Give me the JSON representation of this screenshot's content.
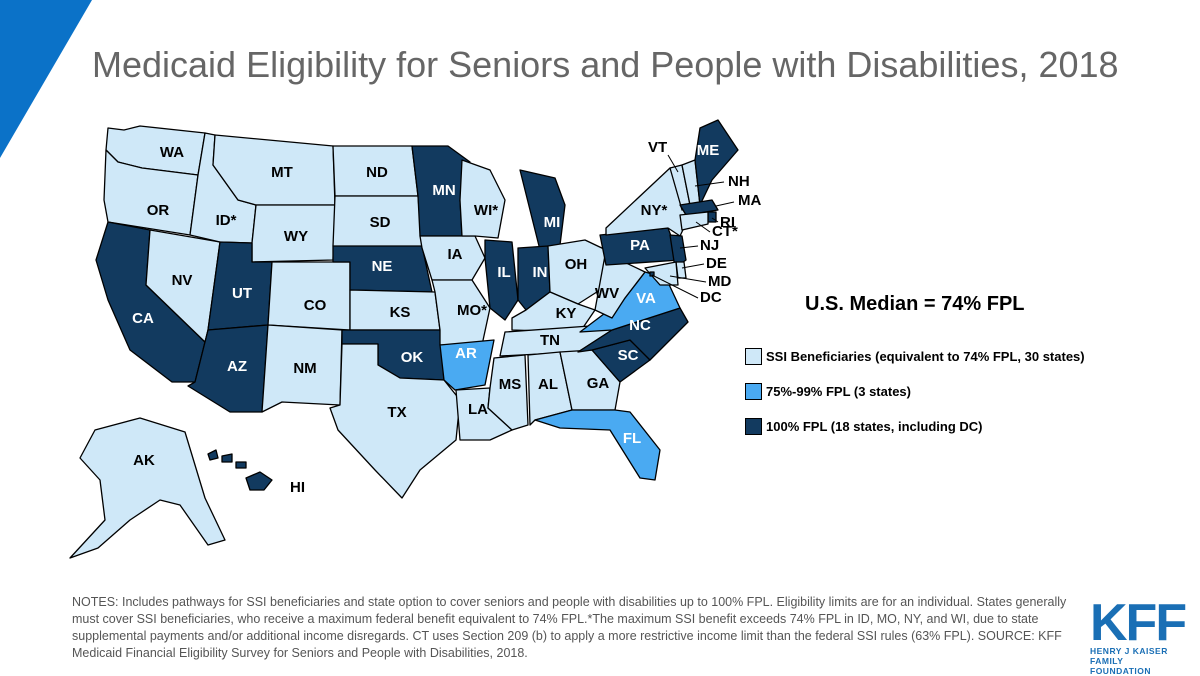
{
  "title": "Medicaid Eligibility for Seniors and People with Disabilities, 2018",
  "median": "U.S. Median = 74% FPL",
  "colors": {
    "accent": "#0b72c8",
    "light": "#cfe8f8",
    "mid": "#4aaaf2",
    "dark": "#123a5f"
  },
  "legend": [
    {
      "key": "light",
      "label": "SSI Beneficiaries (equivalent to 74% FPL, 30 states)"
    },
    {
      "key": "mid",
      "label": "75%-99% FPL (3 states)"
    },
    {
      "key": "dark",
      "label": "100% FPL (18 states, including DC)"
    }
  ],
  "states": [
    {
      "label": "WA",
      "cat": "light"
    },
    {
      "label": "OR",
      "cat": "light"
    },
    {
      "label": "CA",
      "cat": "dark"
    },
    {
      "label": "NV",
      "cat": "light"
    },
    {
      "label": "ID*",
      "cat": "light"
    },
    {
      "label": "MT",
      "cat": "light"
    },
    {
      "label": "WY",
      "cat": "light"
    },
    {
      "label": "UT",
      "cat": "dark"
    },
    {
      "label": "AZ",
      "cat": "dark"
    },
    {
      "label": "CO",
      "cat": "light"
    },
    {
      "label": "NM",
      "cat": "light"
    },
    {
      "label": "ND",
      "cat": "light"
    },
    {
      "label": "SD",
      "cat": "light"
    },
    {
      "label": "NE",
      "cat": "dark"
    },
    {
      "label": "KS",
      "cat": "light"
    },
    {
      "label": "OK",
      "cat": "dark"
    },
    {
      "label": "TX",
      "cat": "light"
    },
    {
      "label": "MN",
      "cat": "dark"
    },
    {
      "label": "IA",
      "cat": "light"
    },
    {
      "label": "MO*",
      "cat": "light"
    },
    {
      "label": "AR",
      "cat": "mid"
    },
    {
      "label": "LA",
      "cat": "light"
    },
    {
      "label": "WI*",
      "cat": "light"
    },
    {
      "label": "IL",
      "cat": "dark"
    },
    {
      "label": "MI",
      "cat": "dark"
    },
    {
      "label": "IN",
      "cat": "dark"
    },
    {
      "label": "OH",
      "cat": "light"
    },
    {
      "label": "KY",
      "cat": "light"
    },
    {
      "label": "TN",
      "cat": "light"
    },
    {
      "label": "MS",
      "cat": "light"
    },
    {
      "label": "AL",
      "cat": "light"
    },
    {
      "label": "GA",
      "cat": "light"
    },
    {
      "label": "FL",
      "cat": "mid"
    },
    {
      "label": "SC",
      "cat": "dark"
    },
    {
      "label": "NC",
      "cat": "dark"
    },
    {
      "label": "VA",
      "cat": "mid"
    },
    {
      "label": "WV",
      "cat": "light"
    },
    {
      "label": "PA",
      "cat": "dark"
    },
    {
      "label": "NY*",
      "cat": "light"
    },
    {
      "label": "VT",
      "cat": "light"
    },
    {
      "label": "NH",
      "cat": "light"
    },
    {
      "label": "ME",
      "cat": "dark"
    },
    {
      "label": "MA",
      "cat": "dark"
    },
    {
      "label": "RI",
      "cat": "dark"
    },
    {
      "label": "CT*",
      "cat": "light"
    },
    {
      "label": "NJ",
      "cat": "dark"
    },
    {
      "label": "DE",
      "cat": "light"
    },
    {
      "label": "MD",
      "cat": "light"
    },
    {
      "label": "DC",
      "cat": "dark"
    },
    {
      "label": "AK",
      "cat": "light"
    },
    {
      "label": "HI",
      "cat": "dark"
    }
  ],
  "notes": "NOTES: Includes pathways for SSI beneficiaries and state option to cover seniors and people with disabilities up to 100% FPL. Eligibility limits are for an individual. States generally must cover SSI beneficiaries, who receive a maximum federal benefit equivalent to 74% FPL.*The maximum SSI benefit exceeds 74% FPL in ID, MO, NY, and WI, due to state supplemental payments and/or additional income disregards. CT uses Section 209 (b) to apply a more restrictive income limit than the federal SSI rules (63% FPL).  SOURCE: KFF Medicaid Financial Eligibility Survey for Seniors and People with Disabilities, 2018.",
  "logo": {
    "name": "KFF",
    "sub1": "HENRY J KAISER",
    "sub2": "FAMILY FOUNDATION"
  }
}
